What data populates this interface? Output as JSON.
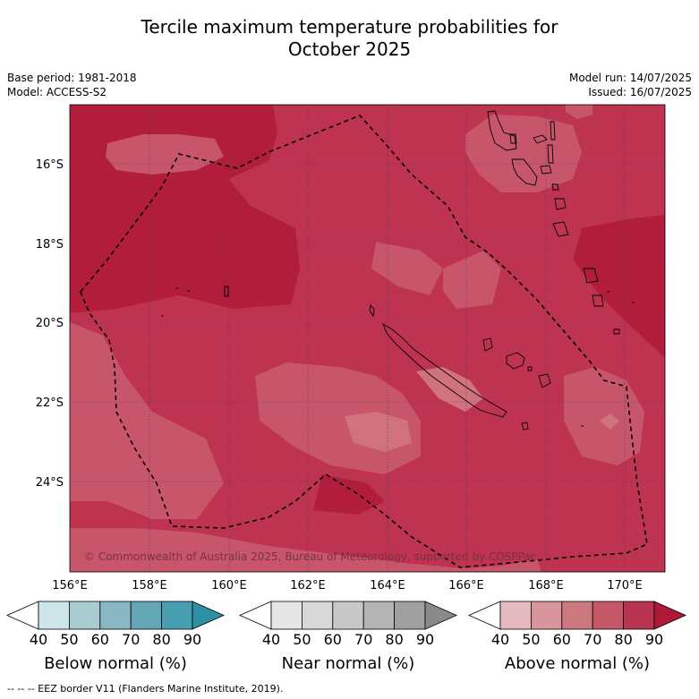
{
  "title_line1": "Tercile maximum temperature probabilities for",
  "title_line2": "October 2025",
  "base_period": "Base period: 1981-2018",
  "model": "Model: ACCESS-S2",
  "model_run": "Model run: 14/07/2025",
  "issued": "Issued: 16/07/2025",
  "copyright": "© Commonwealth of Australia 2025, Bureau of Meteorology, supported by COSPPac",
  "footer": "--  --  -- EEZ border V11 (Flanders Marine Institute, 2019).",
  "map": {
    "lon_ticks": [
      "156°E",
      "158°E",
      "160°E",
      "162°E",
      "164°E",
      "166°E",
      "168°E",
      "170°E"
    ],
    "lat_ticks": [
      "16°S",
      "18°S",
      "20°S",
      "22°S",
      "24°S"
    ],
    "colors": {
      "above_80": "#be3350",
      "above_90": "#b11d3b",
      "above_70": "#c8566a",
      "above_60": "#d0737f"
    }
  },
  "colorbars": [
    {
      "name": "below-normal",
      "title": "Below normal (%)",
      "ticks": [
        "40",
        "50",
        "60",
        "70",
        "80",
        "90"
      ],
      "colors": [
        "#ffffff",
        "#cde4ea",
        "#a9ccd3",
        "#88b8c4",
        "#64a6b5",
        "#479eb0",
        "#2f8fa4"
      ]
    },
    {
      "name": "near-normal",
      "title": "Near normal (%)",
      "ticks": [
        "40",
        "50",
        "60",
        "70",
        "80",
        "90"
      ],
      "colors": [
        "#ffffff",
        "#e6e6e6",
        "#d8d8d8",
        "#c8c8c8",
        "#b4b4b4",
        "#a0a0a0",
        "#8a8a8a"
      ]
    },
    {
      "name": "above-normal",
      "title": "Above normal (%)",
      "ticks": [
        "40",
        "50",
        "60",
        "70",
        "80",
        "90"
      ],
      "colors": [
        "#ffffff",
        "#e4b9c0",
        "#d9959c",
        "#cd787f",
        "#c45869",
        "#b93450",
        "#ac1a38"
      ]
    }
  ]
}
